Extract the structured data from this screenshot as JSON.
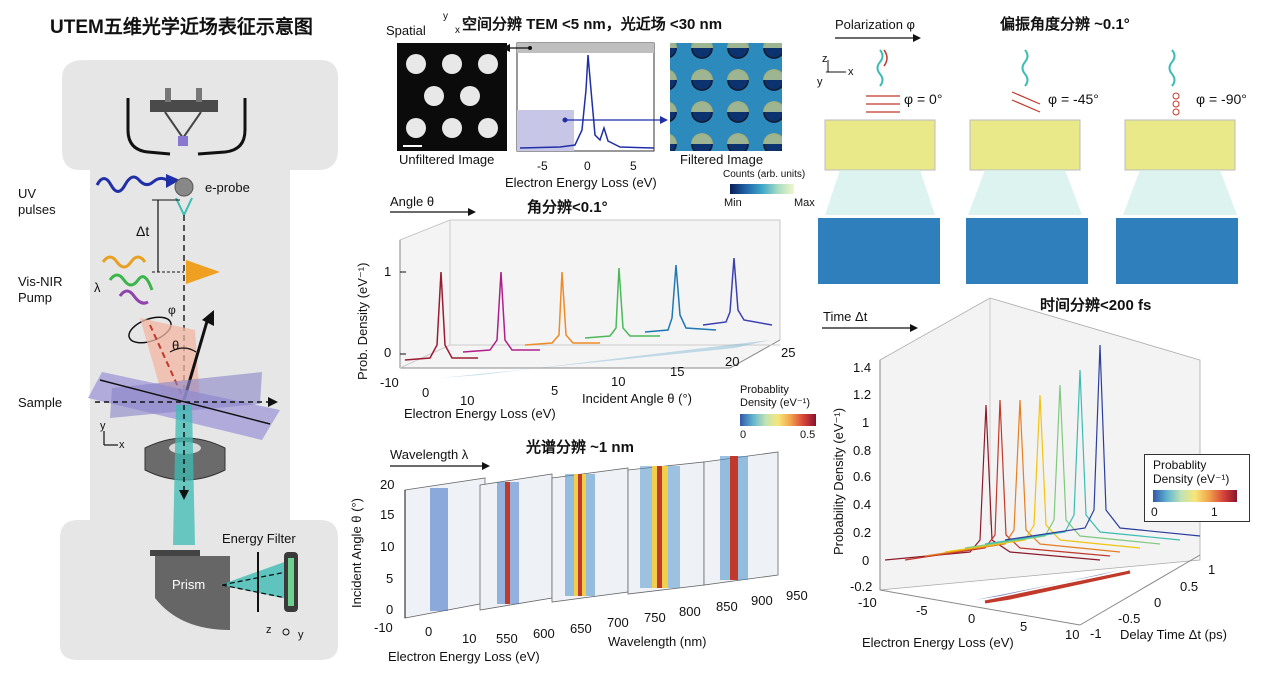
{
  "title": "UTEM五维光学近场表征示意图",
  "schematic": {
    "uv_label": "UV\npulses",
    "eprobe_label": "e-probe",
    "dt_label": "Δt",
    "pump_label": "Vis-NIR\nPump",
    "lambda_label": "λ",
    "phi_label": "φ",
    "theta_label": "θ",
    "sample_label": "Sample",
    "axis_y": "y",
    "axis_x": "x",
    "energy_filter_label": "Energy Filter",
    "prism_label": "Prism",
    "axis_z": "z",
    "axis_y2": "y"
  },
  "spatial": {
    "heading": "空间分辨 TEM <5 nm，光近场 <30 nm",
    "spatial_label": "Spatial",
    "axis_y": "y",
    "axis_x": "x",
    "unfiltered": "Unfiltered Image",
    "filtered": "Filtered Image",
    "xlabel": "Electron Energy Loss (eV)",
    "ticks": [
      "-5",
      "0",
      "5"
    ],
    "colorbar_title": "Counts (arb. units)",
    "cb_min": "Min",
    "cb_max": "Max"
  },
  "angle": {
    "arrow_label": "Angle θ",
    "heading": "角分辨<0.1°",
    "ylabel": "Prob. Density (eV⁻¹)",
    "xlabel": "Electron Energy Loss (eV)",
    "zlabel": "Incident Angle θ (°)",
    "yticks": [
      "1",
      "0"
    ],
    "xticks": [
      "-10",
      "0",
      "10"
    ],
    "zticks": [
      "5",
      "10",
      "15",
      "20",
      "25"
    ],
    "cb_title": "Probablity\nDensity (eV⁻¹)",
    "cb_ticks": [
      "0",
      "0.5"
    ]
  },
  "wavelength": {
    "arrow_label": "Wavelength λ",
    "heading": "光谱分辨 ~1 nm",
    "ylabel": "Incident Angle θ (°)",
    "yticks": [
      "20",
      "15",
      "10",
      "5",
      "0"
    ],
    "xticks": [
      "-10",
      "0",
      "10"
    ],
    "xlabel": "Electron Energy Loss (eV)",
    "wticks": [
      "550",
      "600",
      "650",
      "700",
      "750",
      "800",
      "850",
      "900",
      "950"
    ],
    "wlabel": "Wavelength (nm)"
  },
  "polarization": {
    "arrow_label": "Polarization φ",
    "heading": "偏振角度分辨 ~0.1°",
    "axis_z": "z",
    "axis_y": "y",
    "axis_x": "x",
    "panels": [
      "φ = 0°",
      "φ = -45°",
      "φ = -90°"
    ]
  },
  "time": {
    "arrow_label": "Time Δt",
    "heading": "时间分辨<200 fs",
    "ylabel": "Probability Density (eV⁻¹)",
    "yticks": [
      "1.4",
      "1.2",
      "1",
      "0.8",
      "0.6",
      "0.4",
      "0.2",
      "0",
      "-0.2"
    ],
    "xticks": [
      "-10",
      "-5",
      "0",
      "5",
      "10"
    ],
    "xlabel": "Electron Energy Loss (eV)",
    "dticks": [
      "1",
      "0.5",
      "0",
      "-0.5",
      "-1"
    ],
    "dlabel": "Delay Time Δt (ps)",
    "cb_title": "Probablity\nDensity (eV⁻¹)",
    "cb_ticks": [
      "0",
      "1"
    ]
  },
  "colors": {
    "accent_cyan": "#3cbcb3",
    "panel_gray": "#e6e6e6",
    "dark_red": "#8b1a2b"
  }
}
